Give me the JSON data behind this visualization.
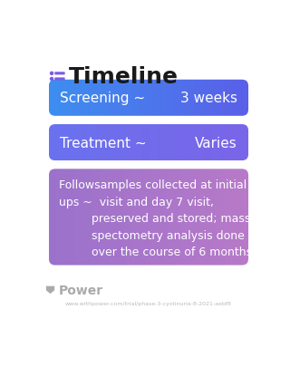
{
  "title": "Timeline",
  "bg_color": "#ffffff",
  "title_color": "#1a1a1a",
  "title_fontsize": 18,
  "icon_color": "#7b5ce6",
  "cards": [
    {
      "label_left": "Screening ~",
      "label_right": "3 weeks",
      "bg_color_left": "#3d8ef0",
      "bg_color_right": "#5b5fe8",
      "text_color": "#ffffff",
      "fontsize": 11
    },
    {
      "label_left": "Treatment ~",
      "label_right": "Varies",
      "bg_color_left": "#6a72ef",
      "bg_color_right": "#7a65e8",
      "text_color": "#ffffff",
      "fontsize": 11
    },
    {
      "label_left": "",
      "label_right": "",
      "bg_color_left": "#9b72cc",
      "bg_color_right": "#b87ac8",
      "text_color": "#ffffff",
      "fontsize": 9,
      "multiline": true,
      "text": "Followsamples collected at initial\nups ~  visit and day 7 visit,\n         preserved and stored; mass\n         spectometry analysis done\n         over the course of 6 months"
    }
  ],
  "power_text": "Power",
  "power_color": "#aaaaaa",
  "url_text": "www.withpower.com/trial/phase-3-cystinuria-8-2021-aebf8",
  "url_color": "#bbbbbb",
  "url_fontsize": 4.5
}
